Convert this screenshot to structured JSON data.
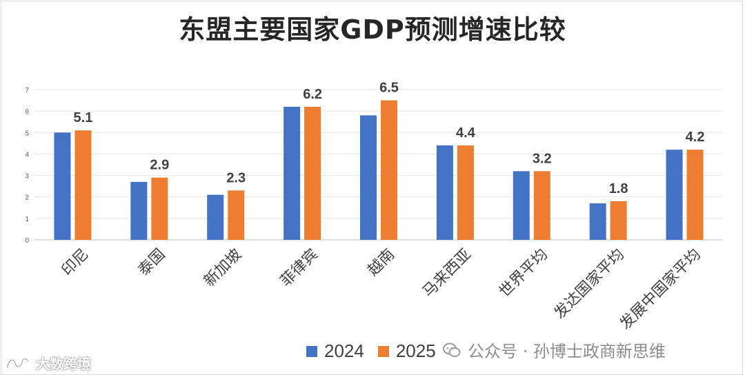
{
  "colors": {
    "series_2024": "#4472c4",
    "series_2025": "#ed7d31"
  },
  "chart_data": {
    "type": "bar",
    "title": "东盟主要国家GDP预测增速比较",
    "categories": [
      "印尼",
      "泰国",
      "新加坡",
      "菲律宾",
      "越南",
      "马来西亚",
      "世界平均",
      "发达国家平均",
      "发展中国家平均"
    ],
    "series": [
      {
        "name": "2024",
        "values": [
          5.0,
          2.7,
          2.1,
          6.2,
          5.8,
          4.4,
          3.2,
          1.7,
          4.2
        ]
      },
      {
        "name": "2025",
        "values": [
          5.1,
          2.9,
          2.3,
          6.2,
          6.5,
          4.4,
          3.2,
          1.8,
          4.2
        ]
      }
    ],
    "data_labels_2025": [
      "5.1",
      "2.9",
      "2.3",
      "6.2",
      "6.5",
      "4.4",
      "3.2",
      "1.8",
      "4.2"
    ],
    "ylim": [
      0,
      7
    ],
    "yticks": [
      "0",
      "1",
      "2",
      "3",
      "4",
      "5",
      "6",
      "7"
    ],
    "grid": true,
    "legend": "bottom"
  },
  "watermark": {
    "text": "公众号 · 孙博士政商新思维"
  },
  "logo": {
    "text": "大数跨境"
  }
}
